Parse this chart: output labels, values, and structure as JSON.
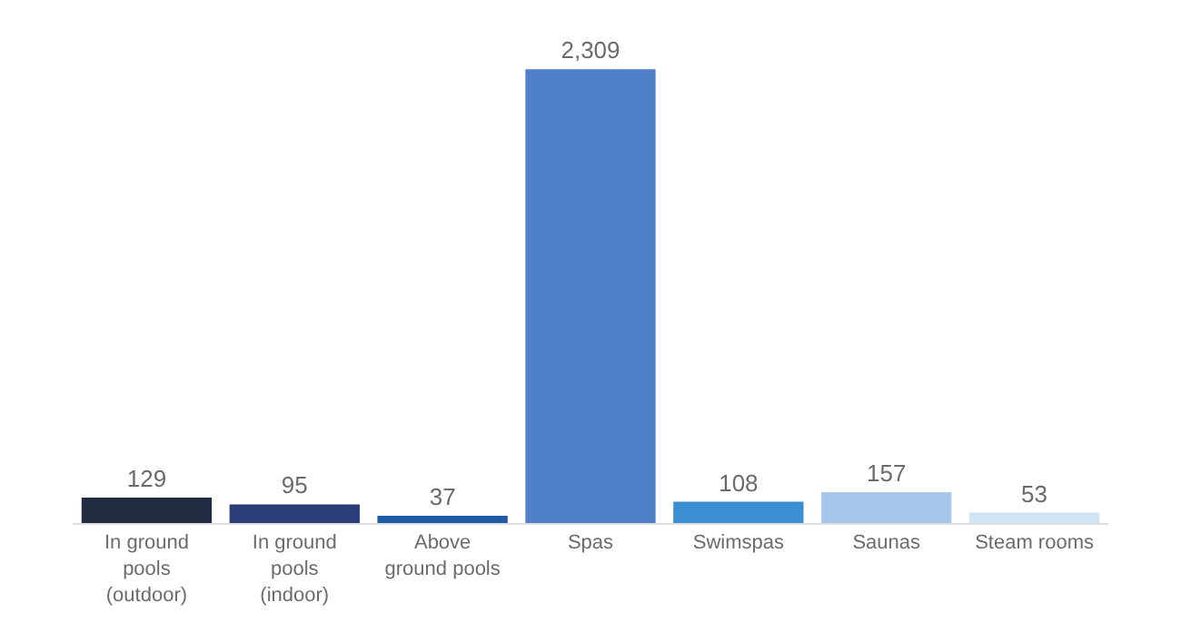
{
  "chart_data": {
    "type": "bar",
    "categories": [
      "In ground\npools\n(outdoor)",
      "In ground\npools\n(indoor)",
      "Above\nground pools",
      "Spas",
      "Swimspas",
      "Saunas",
      "Steam rooms"
    ],
    "values": [
      129,
      95,
      37,
      2309,
      108,
      157,
      53
    ],
    "colors": [
      "#1f2c42",
      "#2b3d78",
      "#1f5aa6",
      "#4f80c8",
      "#3a8ed2",
      "#a6c9eb",
      "#cfe4f5"
    ],
    "data_labels": true,
    "value_labels": [
      "129",
      "95",
      "37",
      "2,309",
      "108",
      "157",
      "53"
    ],
    "legend": false
  }
}
